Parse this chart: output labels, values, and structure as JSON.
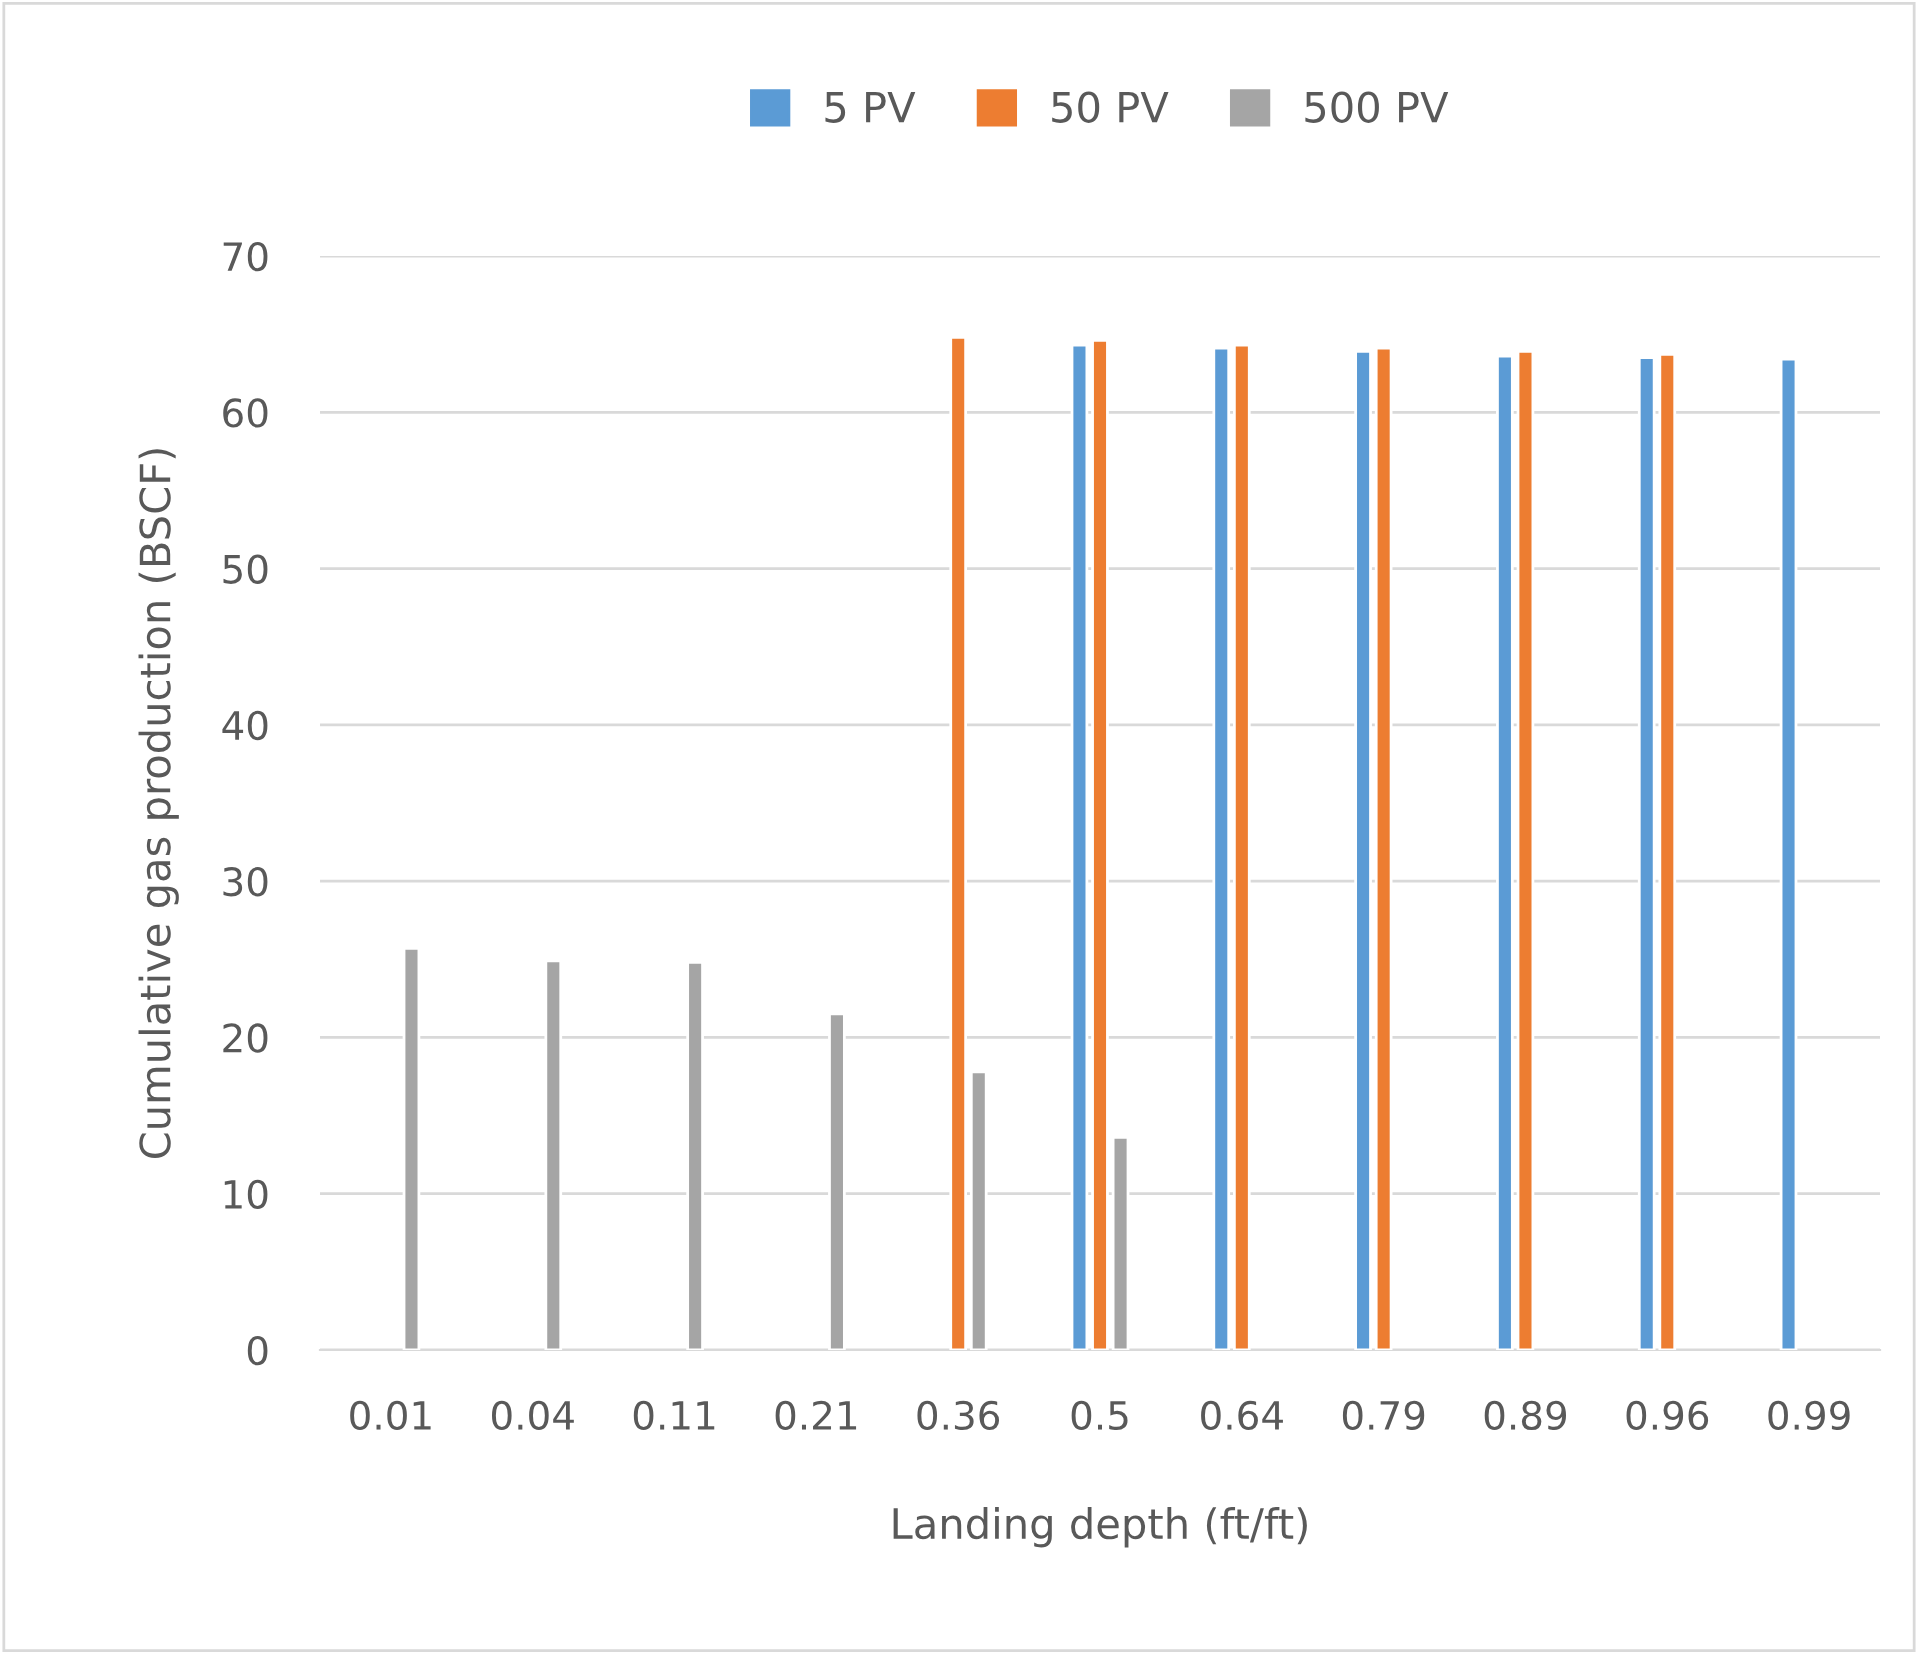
{
  "chart_data": {
    "type": "bar",
    "xlabel": "Landing depth (ft/ft)",
    "ylabel": "Cumulative gas production (BSCF)",
    "categories": [
      "0.01",
      "0.04",
      "0.11",
      "0.21",
      "0.36",
      "0.5",
      "0.64",
      "0.79",
      "0.89",
      "0.96",
      "0.99"
    ],
    "series": [
      {
        "name": "5 PV",
        "color": "#5b9bd5",
        "values": [
          null,
          null,
          null,
          null,
          null,
          64.3,
          64.1,
          63.9,
          63.6,
          63.5,
          63.4
        ]
      },
      {
        "name": "50 PV",
        "color": "#ed7d31",
        "values": [
          null,
          null,
          null,
          null,
          64.8,
          64.6,
          64.3,
          64.1,
          63.9,
          63.7,
          null
        ]
      },
      {
        "name": "500 PV",
        "color": "#a5a5a5",
        "values": [
          25.7,
          24.9,
          24.8,
          21.5,
          17.8,
          13.6,
          null,
          null,
          null,
          null,
          null
        ]
      }
    ],
    "ylim": [
      0,
      70
    ],
    "yticks": [
      0,
      10,
      20,
      30,
      40,
      50,
      60,
      70
    ],
    "grid": "y",
    "legend": "top"
  }
}
